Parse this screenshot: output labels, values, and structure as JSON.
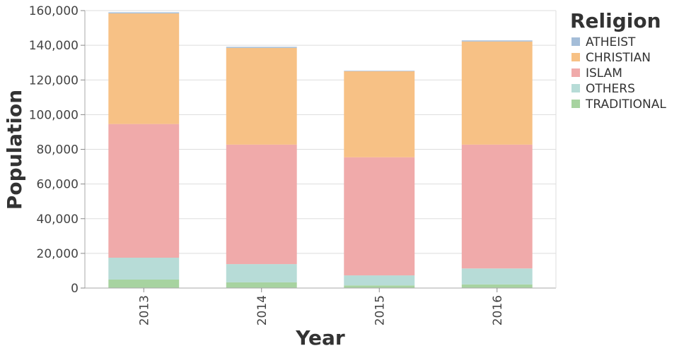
{
  "chart_data": {
    "type": "bar",
    "stacked": true,
    "xlabel": "Year",
    "ylabel": "Population",
    "ylim": [
      0,
      160000
    ],
    "yticks": [
      0,
      20000,
      40000,
      60000,
      80000,
      100000,
      120000,
      140000,
      160000
    ],
    "ytick_labels": [
      "0",
      "20,000",
      "40,000",
      "60,000",
      "80,000",
      "100,000",
      "120,000",
      "140,000",
      "160,000"
    ],
    "categories": [
      "2013",
      "2014",
      "2015",
      "2016"
    ],
    "legend_title": "Religion",
    "legend_position": "top-right",
    "grid": true,
    "series": [
      {
        "name": "TRADITIONAL",
        "color": "#a7d3a0",
        "values": [
          4900,
          3300,
          1500,
          2100
        ]
      },
      {
        "name": "OTHERS",
        "color": "#b7dcd7",
        "values": [
          12600,
          10500,
          5800,
          9200
        ]
      },
      {
        "name": "ISLAM",
        "color": "#f0aaaa",
        "values": [
          77100,
          68900,
          68100,
          71400
        ]
      },
      {
        "name": "CHRISTIAN",
        "color": "#f7c185",
        "values": [
          63800,
          55800,
          49600,
          59500
        ]
      },
      {
        "name": "ATHEIST",
        "color": "#a4bdd8",
        "values": [
          600,
          600,
          300,
          600
        ]
      }
    ],
    "legend_order": [
      "ATHEIST",
      "CHRISTIAN",
      "ISLAM",
      "OTHERS",
      "TRADITIONAL"
    ]
  }
}
